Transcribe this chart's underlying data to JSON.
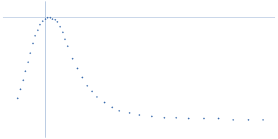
{
  "dot_color": "#3366aa",
  "background_color": "#ffffff",
  "axline_color": "#b0c4de",
  "axline_lw": 0.6,
  "dot_size": 2.5,
  "figsize": [
    4.0,
    2.0
  ],
  "dpi": 100,
  "x": [
    0.01,
    0.02,
    0.03,
    0.04,
    0.05,
    0.06,
    0.07,
    0.08,
    0.09,
    0.1,
    0.11,
    0.12,
    0.13,
    0.14,
    0.15,
    0.16,
    0.17,
    0.18,
    0.19,
    0.2,
    0.21,
    0.23,
    0.25,
    0.27,
    0.29,
    0.31,
    0.33,
    0.36,
    0.39,
    0.42,
    0.46,
    0.5,
    0.55,
    0.6,
    0.65,
    0.7,
    0.76,
    0.82,
    0.88,
    0.94,
    1.0
  ],
  "y": [
    0.3,
    0.38,
    0.46,
    0.54,
    0.62,
    0.7,
    0.78,
    0.85,
    0.9,
    0.95,
    0.98,
    1.0,
    1.01,
    1.01,
    1.0,
    0.99,
    0.97,
    0.93,
    0.88,
    0.82,
    0.76,
    0.65,
    0.56,
    0.48,
    0.41,
    0.36,
    0.31,
    0.26,
    0.22,
    0.19,
    0.17,
    0.15,
    0.14,
    0.13,
    0.13,
    0.12,
    0.12,
    0.12,
    0.11,
    0.11,
    0.11
  ],
  "xlim": [
    -0.05,
    1.05
  ],
  "ylim": [
    -0.05,
    1.15
  ],
  "axline_x": 0.12,
  "axline_y": 1.01
}
